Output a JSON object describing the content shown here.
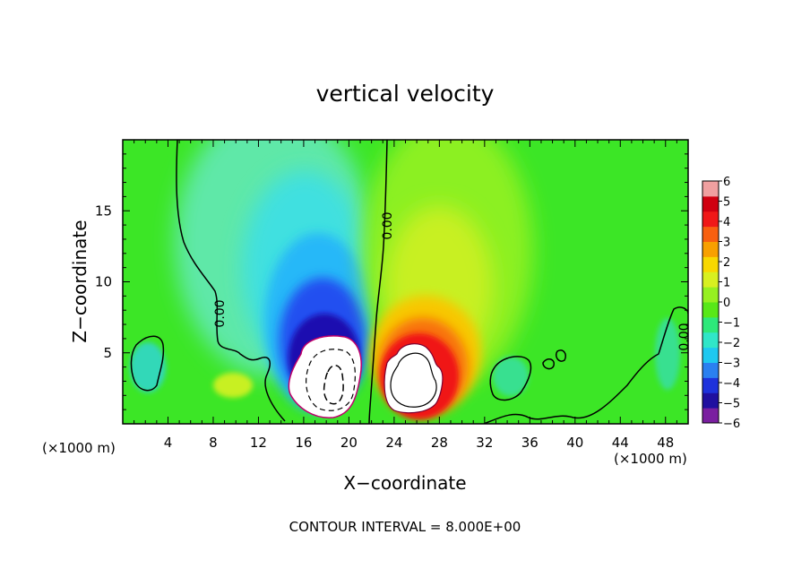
{
  "chart_data": {
    "type": "heatmap",
    "title": "vertical velocity",
    "xlabel": "X−coordinate",
    "ylabel": "Z−coordinate",
    "x_unit_left": "(×1000 m)",
    "x_unit_right": "(×1000 m)",
    "xlim": [
      0,
      50
    ],
    "ylim": [
      0,
      20
    ],
    "x_ticks": [
      4,
      8,
      12,
      16,
      20,
      24,
      28,
      32,
      36,
      40,
      44,
      48
    ],
    "y_ticks": [
      5,
      10,
      15
    ],
    "contour_label": "0.00",
    "footer": "CONTOUR INTERVAL = 8.000E+00",
    "colorbar": {
      "range": [
        -6,
        6
      ],
      "tick_labels": [
        "6",
        "5",
        "4",
        "3",
        "2",
        "1",
        "0",
        "−1",
        "−2",
        "−3",
        "−4",
        "−5",
        "−6"
      ],
      "colors": [
        "#7a1fa0",
        "#2010a0",
        "#1e32dc",
        "#2a80f0",
        "#1ec8f0",
        "#30e6c8",
        "#2ee87a",
        "#58e818",
        "#96f020",
        "#d8f020",
        "#f8d800",
        "#f8a000",
        "#f86010",
        "#f01818",
        "#d00010",
        "#f0a0a0"
      ]
    },
    "background_color": "#3ce626",
    "cells": [
      {
        "x": 18,
        "z": 3,
        "value": -14,
        "note": "downdraft core"
      },
      {
        "x": 18,
        "z": 6.5,
        "value": -5
      },
      {
        "x": 17,
        "z": 12,
        "value": -2
      },
      {
        "x": 26,
        "z": 3,
        "value": 12,
        "note": "updraft core"
      },
      {
        "x": 27,
        "z": 6.5,
        "value": 4
      },
      {
        "x": 27,
        "z": 13,
        "value": 1.5
      },
      {
        "x": 3,
        "z": 4,
        "value": -1.5
      },
      {
        "x": 34,
        "z": 3.5,
        "value": -0.8
      },
      {
        "x": 10,
        "z": 2.5,
        "value": 1.5
      }
    ]
  }
}
